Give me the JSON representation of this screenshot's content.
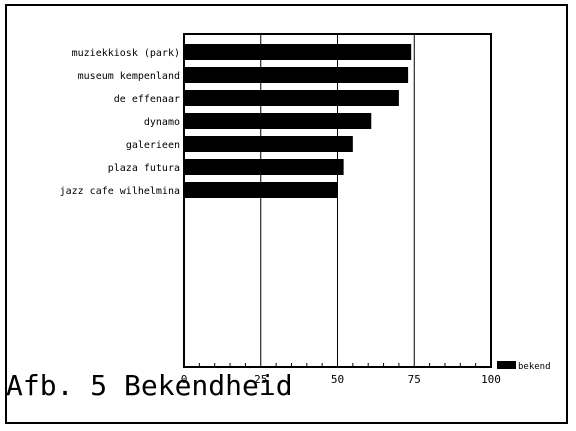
{
  "chart_data": {
    "type": "bar",
    "orientation": "horizontal",
    "categories": [
      "muziekkiosk (park)",
      "museum kempenland",
      "de effenaar",
      "dynamo",
      "galerieen",
      "plaza futura",
      "jazz cafe wilhelmina"
    ],
    "series": [
      {
        "name": "bekend",
        "values": [
          74,
          73,
          70,
          61,
          55,
          52,
          50
        ]
      }
    ],
    "x_ticks": [
      "0",
      "25",
      "50",
      "75",
      "100"
    ],
    "xlim": [
      0,
      100
    ],
    "grid": "vertical",
    "legend_position": "bottom-right",
    "bar_color": "#000000"
  },
  "caption": "Afb. 5 Bekendheid"
}
